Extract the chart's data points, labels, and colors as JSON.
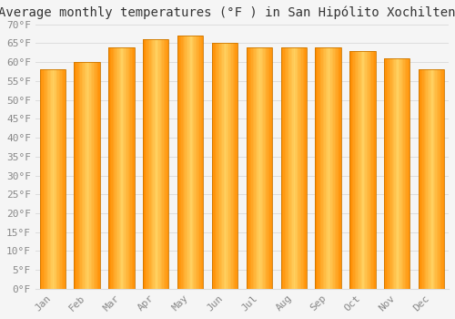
{
  "title": "Average monthly temperatures (°F ) in San Hipólito Xochiltenango",
  "months": [
    "Jan",
    "Feb",
    "Mar",
    "Apr",
    "May",
    "Jun",
    "Jul",
    "Aug",
    "Sep",
    "Oct",
    "Nov",
    "Dec"
  ],
  "values": [
    58,
    60,
    64,
    66,
    67,
    65,
    64,
    64,
    64,
    63,
    61,
    58
  ],
  "bar_color": "#FFA500",
  "bar_edge_color": "#CC7700",
  "background_color": "#f5f5f5",
  "plot_bg_color": "#f5f5f5",
  "grid_color": "#dddddd",
  "ylim": [
    0,
    70
  ],
  "ytick_step": 5,
  "title_fontsize": 10,
  "tick_fontsize": 8,
  "tick_color": "#888888",
  "font_family": "monospace"
}
